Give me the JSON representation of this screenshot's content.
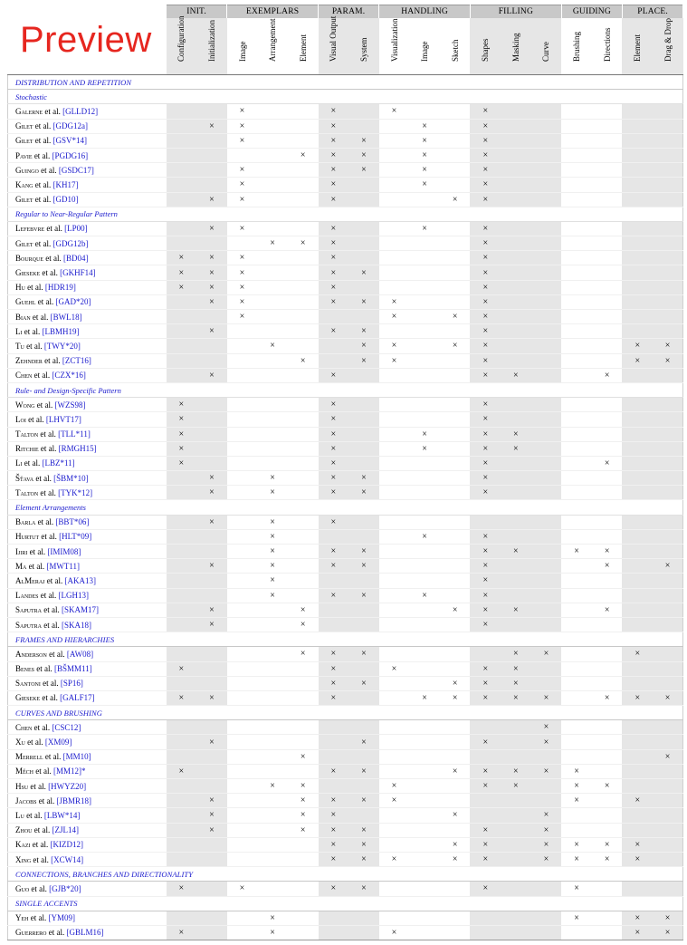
{
  "preview_label": "Preview",
  "mark_symbol": "×",
  "groups": [
    {
      "label": "INIT.",
      "span": 2,
      "shaded": [
        true,
        true
      ]
    },
    {
      "label": "EXEMPLARS",
      "span": 3,
      "shaded": [
        false,
        false,
        false
      ]
    },
    {
      "label": "PARAM.",
      "span": 2,
      "shaded": [
        true,
        true
      ]
    },
    {
      "label": "HANDLING",
      "span": 3,
      "shaded": [
        false,
        false,
        false
      ]
    },
    {
      "label": "FILLING",
      "span": 3,
      "shaded": [
        true,
        true,
        true
      ]
    },
    {
      "label": "GUIDING",
      "span": 2,
      "shaded": [
        false,
        false
      ]
    },
    {
      "label": "PLACE.",
      "span": 2,
      "shaded": [
        true,
        true
      ]
    }
  ],
  "columns": [
    "Configuration",
    "Initialization",
    "Image",
    "Arrangement",
    "Element",
    "Visual Output",
    "System",
    "Visualization",
    "Image",
    "Sketch",
    "Shapes",
    "Masking",
    "Curve",
    "Brushing",
    "Directions",
    "Element",
    "Drag & Drop"
  ],
  "sections": [
    {
      "title": "DISTRIBUTION AND REPETITION",
      "caps": true,
      "subsections": [
        {
          "title": "Stochastic",
          "rows": [
            {
              "author": "Galerne",
              "rest": " et al. ",
              "cite": "[GLLD12]",
              "marks": [
                2,
                5,
                7,
                10
              ]
            },
            {
              "author": "Gilet",
              "rest": " et al. ",
              "cite": "[GDG12a]",
              "marks": [
                1,
                2,
                5,
                8,
                10
              ]
            },
            {
              "author": "Gilet",
              "rest": " et al. ",
              "cite": "[GSV*14]",
              "marks": [
                2,
                5,
                6,
                8,
                10
              ]
            },
            {
              "author": "Pavie",
              "rest": " et al. ",
              "cite": "[PGDG16]",
              "marks": [
                4,
                5,
                6,
                8,
                10
              ]
            },
            {
              "author": "Guingo",
              "rest": " et al. ",
              "cite": "[GSDC17]",
              "marks": [
                2,
                5,
                6,
                8,
                10
              ]
            },
            {
              "author": "Kang",
              "rest": " et al. ",
              "cite": "[KH17]",
              "marks": [
                2,
                5,
                8,
                10
              ]
            },
            {
              "author": "Gilet",
              "rest": " et al. ",
              "cite": "[GD10]",
              "marks": [
                1,
                2,
                5,
                9,
                10
              ]
            }
          ]
        },
        {
          "title": "Regular to Near-Regular Pattern",
          "rows": [
            {
              "author": "Lefebvre",
              "rest": " et al. ",
              "cite": "[LP00]",
              "marks": [
                1,
                2,
                5,
                8,
                10
              ]
            },
            {
              "author": "Gilet",
              "rest": " et al. ",
              "cite": "[GDG12b]",
              "marks": [
                3,
                4,
                5,
                10
              ]
            },
            {
              "author": "Bourque",
              "rest": " et al. ",
              "cite": "[BD04]",
              "marks": [
                0,
                1,
                2,
                5,
                10
              ]
            },
            {
              "author": "Gieseke",
              "rest": " et al. ",
              "cite": "[GKHF14]",
              "marks": [
                0,
                1,
                2,
                5,
                6,
                10
              ]
            },
            {
              "author": "Hu",
              "rest": " et al. ",
              "cite": "[HDR19]",
              "marks": [
                0,
                1,
                2,
                5,
                10
              ]
            },
            {
              "author": "Guehl",
              "rest": " et al. ",
              "cite": "[GAD*20]",
              "marks": [
                1,
                2,
                5,
                6,
                7,
                10
              ]
            },
            {
              "author": "Bian",
              "rest": " et al. ",
              "cite": "[BWL18]",
              "marks": [
                2,
                7,
                9,
                10
              ]
            },
            {
              "author": "Li",
              "rest": " et al. ",
              "cite": "[LBMH19]",
              "marks": [
                1,
                5,
                6,
                10
              ]
            },
            {
              "author": "Tu",
              "rest": " et al. ",
              "cite": "[TWY*20]",
              "marks": [
                3,
                6,
                7,
                9,
                10,
                15,
                16
              ]
            },
            {
              "author": "Zehnder",
              "rest": " et al. ",
              "cite": "[ZCT16]",
              "marks": [
                4,
                6,
                7,
                10,
                15,
                16
              ]
            },
            {
              "author": "Chen",
              "rest": " et al. ",
              "cite": "[CZX*16]",
              "marks": [
                1,
                5,
                10,
                11,
                14
              ]
            }
          ]
        },
        {
          "title": "Rule- and Design-Specific Pattern",
          "rows": [
            {
              "author": "Wong",
              "rest": " et al. ",
              "cite": "[WZS98]",
              "marks": [
                0,
                5,
                10
              ]
            },
            {
              "author": "Loi",
              "rest": " et al. ",
              "cite": "[LHVT17]",
              "marks": [
                0,
                5,
                10
              ]
            },
            {
              "author": "Talton",
              "rest": " et al. ",
              "cite": "[TLL*11]",
              "marks": [
                0,
                5,
                8,
                10,
                11
              ]
            },
            {
              "author": "Ritchie",
              "rest": " et al. ",
              "cite": "[RMGH15]",
              "marks": [
                0,
                5,
                8,
                10,
                11
              ]
            },
            {
              "author": "Li",
              "rest": " et al. ",
              "cite": "[LBZ*11]",
              "marks": [
                0,
                5,
                10,
                14
              ]
            },
            {
              "author": "Šťava",
              "rest": " et al. ",
              "cite": "[ŠBM*10]",
              "marks": [
                1,
                3,
                5,
                6,
                10
              ]
            },
            {
              "author": "Talton",
              "rest": " et al. ",
              "cite": "[TYK*12]",
              "marks": [
                1,
                3,
                5,
                6,
                10
              ]
            }
          ]
        },
        {
          "title": "Element Arrangements",
          "rows": [
            {
              "author": "Barla",
              "rest": " et al. ",
              "cite": "[BBT*06]",
              "marks": [
                1,
                3,
                5
              ]
            },
            {
              "author": "Hurtut",
              "rest": " et al. ",
              "cite": "[HLT*09]",
              "marks": [
                3,
                8,
                10
              ]
            },
            {
              "author": "Ijiri",
              "rest": " et al. ",
              "cite": "[IMIM08]",
              "marks": [
                3,
                5,
                6,
                10,
                11,
                13,
                14
              ]
            },
            {
              "author": "Ma",
              "rest": " et al. ",
              "cite": "[MWT11]",
              "marks": [
                1,
                3,
                5,
                6,
                10,
                14,
                16
              ]
            },
            {
              "author": "AlMeraj",
              "rest": " et al. ",
              "cite": "[AKA13]",
              "marks": [
                3,
                10
              ]
            },
            {
              "author": "Landes",
              "rest": " et al. ",
              "cite": "[LGH13]",
              "marks": [
                3,
                5,
                6,
                8,
                10
              ]
            },
            {
              "author": "Saputra",
              "rest": " et al. ",
              "cite": "[SKAM17]",
              "marks": [
                1,
                4,
                9,
                10,
                11,
                14
              ]
            },
            {
              "author": "Saputra",
              "rest": " et al. ",
              "cite": "[SKA18]",
              "marks": [
                1,
                4,
                10
              ]
            }
          ]
        }
      ]
    },
    {
      "title": "FRAMES AND HIERARCHIES",
      "caps": true,
      "subsections": [
        {
          "title": "",
          "rows": [
            {
              "author": "Anderson",
              "rest": " et al. ",
              "cite": "[AW08]",
              "marks": [
                4,
                5,
                6,
                11,
                12,
                15
              ]
            },
            {
              "author": "Benes",
              "rest": " et al. ",
              "cite": "[BŠMM11]",
              "marks": [
                0,
                5,
                7,
                10,
                11
              ]
            },
            {
              "author": "Santoni",
              "rest": " et al. ",
              "cite": "[SP16]",
              "marks": [
                5,
                6,
                9,
                10,
                11
              ]
            },
            {
              "author": "Gieseke",
              "rest": " et al. ",
              "cite": "[GALF17]",
              "marks": [
                0,
                1,
                5,
                8,
                9,
                10,
                11,
                12,
                14,
                15,
                16
              ]
            }
          ]
        }
      ]
    },
    {
      "title": "CURVES AND BRUSHING",
      "caps": true,
      "subsections": [
        {
          "title": "",
          "rows": [
            {
              "author": "Chen",
              "rest": " et al. ",
              "cite": "[CSC12]",
              "marks": [
                12
              ]
            },
            {
              "author": "Xu",
              "rest": " et al. ",
              "cite": "[XM09]",
              "marks": [
                1,
                6,
                10,
                12
              ]
            },
            {
              "author": "Merrell",
              "rest": " et al. ",
              "cite": "[MM10]",
              "marks": [
                4,
                16
              ]
            },
            {
              "author": "Měch",
              "rest": " et al. ",
              "cite": "[MM12]*",
              "marks": [
                0,
                5,
                6,
                9,
                10,
                11,
                12,
                13
              ]
            },
            {
              "author": "Hsu",
              "rest": " et al. ",
              "cite": "[HWYZ20]",
              "marks": [
                3,
                4,
                7,
                10,
                11,
                13,
                14
              ]
            },
            {
              "author": "Jacobs",
              "rest": " et al. ",
              "cite": "[JBMR18]",
              "marks": [
                1,
                4,
                5,
                6,
                7,
                13,
                15
              ]
            },
            {
              "author": "Lu",
              "rest": " et al. ",
              "cite": "[LBW*14]",
              "marks": [
                1,
                4,
                5,
                9,
                12
              ]
            },
            {
              "author": "Zhou",
              "rest": " et al. ",
              "cite": "[ZJL14]",
              "marks": [
                1,
                4,
                5,
                6,
                10,
                12
              ]
            },
            {
              "author": "Kazi",
              "rest": " et al. ",
              "cite": "[KIZD12]",
              "marks": [
                5,
                6,
                9,
                10,
                12,
                13,
                14,
                15
              ]
            },
            {
              "author": "Xing",
              "rest": " et al. ",
              "cite": "[XCW14]",
              "marks": [
                5,
                6,
                7,
                9,
                10,
                12,
                13,
                14,
                15
              ]
            }
          ]
        }
      ]
    },
    {
      "title": "CONNECTIONS, BRANCHES AND DIRECTIONALITY",
      "caps": true,
      "subsections": [
        {
          "title": "",
          "rows": [
            {
              "author": "Guo",
              "rest": " et al. ",
              "cite": "[GJB*20]",
              "marks": [
                0,
                2,
                5,
                6,
                10,
                13
              ]
            }
          ]
        }
      ]
    },
    {
      "title": "SINGLE ACCENTS",
      "caps": true,
      "subsections": [
        {
          "title": "",
          "rows": [
            {
              "author": "Yeh",
              "rest": " et al. ",
              "cite": "[YM09]",
              "marks": [
                3,
                13,
                15,
                16
              ]
            },
            {
              "author": "Guerrero",
              "rest": " et al. ",
              "cite": "[GBLM16]",
              "marks": [
                0,
                3,
                7,
                15,
                16
              ]
            }
          ]
        }
      ]
    }
  ]
}
